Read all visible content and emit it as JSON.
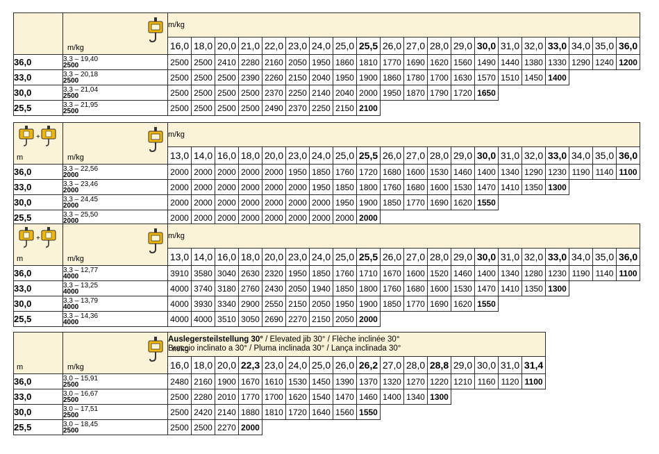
{
  "section1": {
    "col_header": "m/kg",
    "corner_label": "m/kg",
    "radii": [
      "16,0",
      "18,0",
      "20,0",
      "21,0",
      "22,0",
      "23,0",
      "24,0",
      "25,0",
      "25,5",
      "26,0",
      "27,0",
      "28,0",
      "29,0",
      "30,0",
      "31,0",
      "32,0",
      "33,0",
      "34,0",
      "35,0",
      "36,0"
    ],
    "rows": [
      {
        "boom": "36,0",
        "range": "3,3 – 19,40",
        "maxload": "2500",
        "values": [
          "2500",
          "2500",
          "2410",
          "2280",
          "2160",
          "2050",
          "1950",
          "1860",
          "1810",
          "1770",
          "1690",
          "1620",
          "1560",
          "1490",
          "1440",
          "1380",
          "1330",
          "1290",
          "1240",
          "1200"
        ]
      },
      {
        "boom": "33,0",
        "range": "3,3 – 20,18",
        "maxload": "2500",
        "values": [
          "2500",
          "2500",
          "2500",
          "2390",
          "2260",
          "2150",
          "2040",
          "1950",
          "1900",
          "1860",
          "1780",
          "1700",
          "1630",
          "1570",
          "1510",
          "1450",
          "1400"
        ]
      },
      {
        "boom": "30,0",
        "range": "3,3 – 21,04",
        "maxload": "2500",
        "values": [
          "2500",
          "2500",
          "2500",
          "2500",
          "2370",
          "2250",
          "2140",
          "2040",
          "2000",
          "1950",
          "1870",
          "1790",
          "1720",
          "1650"
        ]
      },
      {
        "boom": "25,5",
        "range": "3,3 – 21,95",
        "maxload": "2500",
        "values": [
          "2500",
          "2500",
          "2500",
          "2500",
          "2490",
          "2370",
          "2250",
          "2150",
          "2100"
        ]
      }
    ]
  },
  "section2": {
    "col_header": "m/kg",
    "corner_m": "m",
    "corner_label": "m/kg",
    "radii": [
      "13,0",
      "14,0",
      "16,0",
      "18,0",
      "20,0",
      "23,0",
      "24,0",
      "25,0",
      "25,5",
      "26,0",
      "27,0",
      "28,0",
      "29,0",
      "30,0",
      "31,0",
      "32,0",
      "33,0",
      "34,0",
      "35,0",
      "36,0"
    ],
    "rows": [
      {
        "boom": "36,0",
        "range": "3,3 – 22,56",
        "maxload": "2000",
        "values": [
          "2000",
          "2000",
          "2000",
          "2000",
          "2000",
          "1950",
          "1850",
          "1760",
          "1720",
          "1680",
          "1600",
          "1530",
          "1460",
          "1400",
          "1340",
          "1290",
          "1230",
          "1190",
          "1140",
          "1100"
        ]
      },
      {
        "boom": "33,0",
        "range": "3,3 – 23,46",
        "maxload": "2000",
        "values": [
          "2000",
          "2000",
          "2000",
          "2000",
          "2000",
          "2000",
          "1950",
          "1850",
          "1800",
          "1760",
          "1680",
          "1600",
          "1530",
          "1470",
          "1410",
          "1350",
          "1300"
        ]
      },
      {
        "boom": "30,0",
        "range": "3,3 – 24,45",
        "maxload": "2000",
        "values": [
          "2000",
          "2000",
          "2000",
          "2000",
          "2000",
          "2000",
          "2000",
          "1950",
          "1900",
          "1850",
          "1770",
          "1690",
          "1620",
          "1550"
        ]
      },
      {
        "boom": "25,5",
        "range": "3,3 – 25,50",
        "maxload": "2000",
        "values": [
          "2000",
          "2000",
          "2000",
          "2000",
          "2000",
          "2000",
          "2000",
          "2000",
          "2000"
        ]
      }
    ]
  },
  "section3": {
    "col_header": "m/kg",
    "corner_m": "m",
    "corner_label": "m/kg",
    "radii": [
      "13,0",
      "14,0",
      "16,0",
      "18,0",
      "20,0",
      "23,0",
      "24,0",
      "25,0",
      "25,5",
      "26,0",
      "27,0",
      "28,0",
      "29,0",
      "30,0",
      "31,0",
      "32,0",
      "33,0",
      "34,0",
      "35,0",
      "36,0"
    ],
    "rows": [
      {
        "boom": "36,0",
        "range": "3,3 – 12,77",
        "maxload": "4000",
        "values": [
          "3910",
          "3580",
          "3040",
          "2630",
          "2320",
          "1950",
          "1850",
          "1760",
          "1710",
          "1670",
          "1600",
          "1520",
          "1460",
          "1400",
          "1340",
          "1280",
          "1230",
          "1190",
          "1140",
          "1100"
        ]
      },
      {
        "boom": "33,0",
        "range": "3,3 – 13,25",
        "maxload": "4000",
        "values": [
          "4000",
          "3740",
          "3180",
          "2760",
          "2430",
          "2050",
          "1940",
          "1850",
          "1800",
          "1760",
          "1680",
          "1600",
          "1530",
          "1470",
          "1410",
          "1350",
          "1300"
        ]
      },
      {
        "boom": "30,0",
        "range": "3,3 – 13,79",
        "maxload": "4000",
        "values": [
          "4000",
          "3930",
          "3340",
          "2900",
          "2550",
          "2150",
          "2050",
          "1950",
          "1900",
          "1850",
          "1770",
          "1690",
          "1620",
          "1550"
        ]
      },
      {
        "boom": "25,5",
        "range": "3,3 – 14,36",
        "maxload": "4000",
        "values": [
          "4000",
          "4000",
          "3510",
          "3050",
          "2690",
          "2270",
          "2150",
          "2050",
          "2000"
        ]
      }
    ]
  },
  "section4": {
    "col_header": "m/kg",
    "corner_m": "m",
    "corner_label": "m/kg",
    "title_bold": "Auslegersteilstellung 30°",
    "title_rest": " / Elevated jib 30° / Flèche inclinée 30°",
    "title_line2": "Braccio inclinato a 30° / Pluma inclinada 30° / Lança inclinada 30°",
    "radii": [
      "16,0",
      "18,0",
      "20,0",
      "22,3",
      "23,0",
      "24,0",
      "25,0",
      "26,0",
      "26,2",
      "27,0",
      "28,0",
      "28,8",
      "29,0",
      "30,0",
      "31,0",
      "31,4"
    ],
    "rows": [
      {
        "boom": "36,0",
        "range": "3,0 – 15,91",
        "maxload": "2500",
        "values": [
          "2480",
          "2160",
          "1900",
          "1670",
          "1610",
          "1530",
          "1450",
          "1390",
          "1370",
          "1320",
          "1270",
          "1220",
          "1210",
          "1160",
          "1120",
          "1100"
        ]
      },
      {
        "boom": "33,0",
        "range": "3,0 – 16,67",
        "maxload": "2500",
        "values": [
          "2500",
          "2280",
          "2010",
          "1770",
          "1700",
          "1620",
          "1540",
          "1470",
          "1460",
          "1400",
          "1340",
          "1300"
        ]
      },
      {
        "boom": "30,0",
        "range": "3,0 – 17,51",
        "maxload": "2500",
        "values": [
          "2500",
          "2420",
          "2140",
          "1880",
          "1810",
          "1720",
          "1640",
          "1560",
          "1550"
        ]
      },
      {
        "boom": "25,5",
        "range": "3,0 – 18,45",
        "maxload": "2500",
        "values": [
          "2500",
          "2500",
          "2270",
          "2000"
        ]
      }
    ]
  },
  "colors": {
    "header_bg": "#faf3d7",
    "hook_yellow": "#f2b705",
    "border": "#2a2a2a"
  },
  "icons": [
    "single-hook-icon",
    "double-hook-combo-icon"
  ]
}
